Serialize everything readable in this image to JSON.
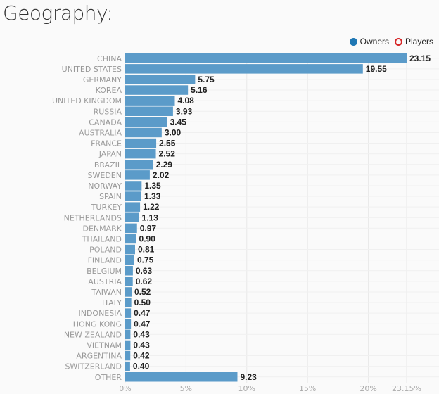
{
  "title": "Geography:",
  "legend": {
    "owners": "Owners",
    "players": "Players"
  },
  "colors": {
    "owners": "#5b9bc9",
    "players": "#d62728",
    "grid": "#e8e8e8"
  },
  "chart_data": {
    "type": "bar",
    "orientation": "horizontal",
    "categories": [
      "CHINA",
      "UNITED STATES",
      "GERMANY",
      "KOREA",
      "UNITED KINGDOM",
      "RUSSIA",
      "CANADA",
      "AUSTRALIA",
      "FRANCE",
      "JAPAN",
      "BRAZIL",
      "SWEDEN",
      "NORWAY",
      "SPAIN",
      "TURKEY",
      "NETHERLANDS",
      "DENMARK",
      "THAILAND",
      "POLAND",
      "FINLAND",
      "BELGIUM",
      "AUSTRIA",
      "TAIWAN",
      "ITALY",
      "INDONESIA",
      "HONG KONG",
      "NEW ZEALAND",
      "VIETNAM",
      "ARGENTINA",
      "SWITZERLAND",
      "OTHER"
    ],
    "series": [
      {
        "name": "Owners",
        "values": [
          23.15,
          19.55,
          5.75,
          5.16,
          4.08,
          3.93,
          3.45,
          3.0,
          2.55,
          2.52,
          2.29,
          2.02,
          1.35,
          1.33,
          1.22,
          1.13,
          0.97,
          0.9,
          0.81,
          0.75,
          0.63,
          0.62,
          0.52,
          0.5,
          0.47,
          0.47,
          0.43,
          0.43,
          0.42,
          0.4,
          9.23
        ]
      }
    ],
    "value_labels": [
      "23.15",
      "19.55",
      "5.75",
      "5.16",
      "4.08",
      "3.93",
      "3.45",
      "3.00",
      "2.55",
      "2.52",
      "2.29",
      "2.02",
      "1.35",
      "1.33",
      "1.22",
      "1.13",
      "0.97",
      "0.90",
      "0.81",
      "0.75",
      "0.63",
      "0.62",
      "0.52",
      "0.50",
      "0.47",
      "0.47",
      "0.43",
      "0.43",
      "0.42",
      "0.40",
      "9.23"
    ],
    "xticks": [
      0,
      5,
      10,
      15,
      20,
      23.15
    ],
    "xtick_labels": [
      "0%",
      "5%",
      "10%",
      "15%",
      "20%",
      "23.15%"
    ],
    "xlim": [
      0,
      23.15
    ],
    "grid": true,
    "legend_position": "top-right"
  }
}
